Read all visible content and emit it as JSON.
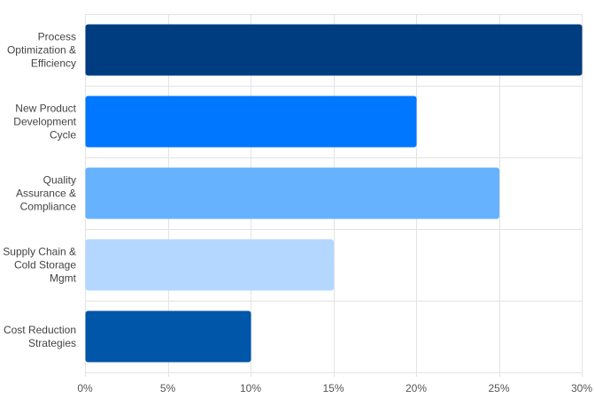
{
  "chart_data": {
    "type": "bar",
    "orientation": "horizontal",
    "title": "",
    "xlabel": "",
    "ylabel": "",
    "xlim": [
      0,
      30
    ],
    "x_ticks": [
      "0%",
      "5%",
      "10%",
      "15%",
      "20%",
      "25%",
      "30%"
    ],
    "x_tick_values": [
      0,
      5,
      10,
      15,
      20,
      25,
      30
    ],
    "grid": true,
    "categories": [
      [
        "Process",
        "Optimization &",
        "Efficiency"
      ],
      [
        "New Product",
        "Development",
        "Cycle"
      ],
      [
        "Quality",
        "Assurance &",
        "Compliance"
      ],
      [
        "Supply Chain &",
        "Cold Storage",
        "Mgmt"
      ],
      [
        "Cost Reduction",
        "Strategies"
      ]
    ],
    "values": [
      30,
      20,
      25,
      15,
      10
    ],
    "colors": [
      "#003d80",
      "#0077ff",
      "#66b2ff",
      "#b3d7ff",
      "#0056a8"
    ]
  }
}
